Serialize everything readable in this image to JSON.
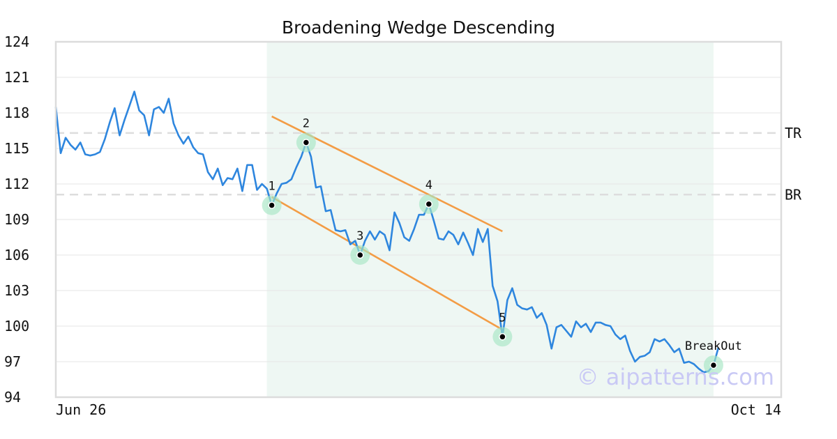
{
  "chart_data": {
    "type": "line",
    "title": "Broadening Wedge Descending",
    "xlabel": "",
    "ylabel": "",
    "ylim": [
      94,
      124
    ],
    "y_ticks": [
      94,
      97,
      100,
      103,
      106,
      109,
      112,
      115,
      118,
      121,
      124
    ],
    "x_tick_labels": [
      "Jun 26",
      "Oct 14"
    ],
    "grid": true,
    "pattern_region": {
      "start_index": 43,
      "end_index": 134
    },
    "levels": [
      {
        "name": "TR",
        "value": 116.3
      },
      {
        "name": "BR",
        "value": 111.1
      }
    ],
    "trendlines": [
      {
        "name": "upper",
        "points": [
          [
            44,
            117.7
          ],
          [
            91,
            108.0
          ]
        ]
      },
      {
        "name": "lower",
        "points": [
          [
            44,
            110.9
          ],
          [
            91,
            99.7
          ]
        ]
      }
    ],
    "pattern_points": [
      {
        "label": "1",
        "index": 44,
        "value": 110.2
      },
      {
        "label": "2",
        "index": 51,
        "value": 115.5
      },
      {
        "label": "3",
        "index": 62,
        "value": 106.0
      },
      {
        "label": "4",
        "index": 76,
        "value": 110.3
      },
      {
        "label": "5",
        "index": 91,
        "value": 99.1
      },
      {
        "label": "BreakOut",
        "index": 134,
        "value": 96.7
      }
    ],
    "series": [
      {
        "values": [
          118.5,
          114.6,
          115.9,
          115.3,
          114.9,
          115.5,
          114.5,
          114.4,
          114.5,
          114.7,
          115.8,
          117.2,
          118.4,
          116.1,
          117.4,
          118.6,
          119.8,
          118.2,
          117.8,
          116.1,
          118.3,
          118.5,
          118.0,
          119.2,
          117.1,
          116.1,
          115.4,
          116.0,
          115.1,
          114.6,
          114.5,
          113.0,
          112.4,
          113.3,
          111.9,
          112.5,
          112.4,
          113.3,
          111.4,
          113.6,
          113.6,
          111.5,
          112.0,
          111.6,
          110.2,
          111.2,
          112.0,
          112.1,
          112.4,
          113.4,
          114.3,
          115.5,
          114.3,
          111.7,
          111.8,
          109.7,
          109.8,
          108.1,
          108.0,
          108.1,
          106.9,
          107.2,
          106.0,
          107.2,
          108.0,
          107.3,
          108.0,
          107.7,
          106.4,
          109.6,
          108.7,
          107.5,
          107.2,
          108.2,
          109.4,
          109.4,
          110.3,
          108.9,
          107.4,
          107.3,
          108.0,
          107.7,
          106.9,
          107.9,
          107.0,
          106.0,
          108.2,
          107.1,
          108.2,
          103.4,
          102.1,
          99.1,
          102.2,
          103.2,
          101.8,
          101.5,
          101.4,
          101.6,
          100.7,
          101.1,
          100.1,
          98.1,
          99.9,
          100.1,
          99.6,
          99.1,
          100.4,
          99.9,
          100.2,
          99.5,
          100.3,
          100.3,
          100.1,
          100.0,
          99.3,
          98.9,
          99.2,
          97.9,
          97.0,
          97.4,
          97.5,
          97.8,
          98.9,
          98.7,
          98.9,
          98.4,
          97.8,
          98.1,
          96.9,
          97.0,
          96.8,
          96.4,
          96.1,
          96.2,
          96.7,
          98.2
        ]
      }
    ]
  },
  "watermark": "© aipatterns.com",
  "colors": {
    "line": "#2e86de",
    "trendline": "#f39c45",
    "region": "#eef7f3",
    "highlight": "#a8e6c4",
    "level": "#dddddd",
    "grid": "#e6e6e6",
    "frame": "#dcdcdc"
  }
}
